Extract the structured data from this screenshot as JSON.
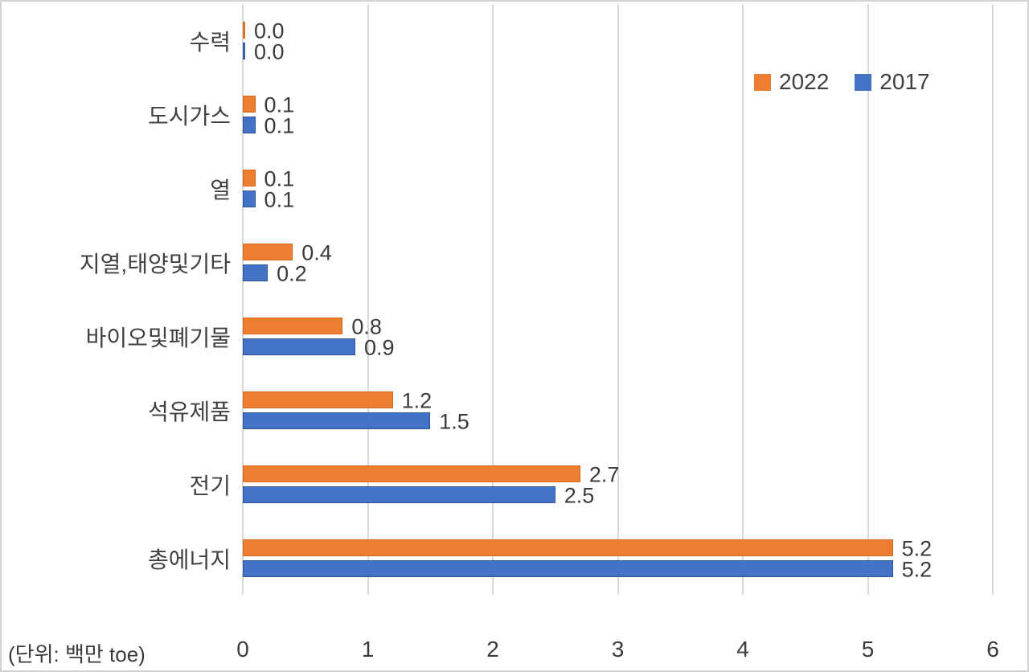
{
  "frame": {
    "background": "#FFFFFF",
    "border_color": "#D2D2D2"
  },
  "unit_note": "(단위: 백만 toe)",
  "legend": {
    "position": "top-right",
    "items": [
      {
        "label": "2022",
        "color": "#ED7D31"
      },
      {
        "label": "2017",
        "color": "#4472C4"
      }
    ]
  },
  "chart_data": {
    "type": "bar",
    "orientation": "horizontal",
    "title": "",
    "xlabel": "",
    "ylabel": "",
    "categories": [
      "수력",
      "도시가스",
      "열",
      "지열,태양및기타",
      "바이오및폐기물",
      "석유제품",
      "전기",
      "총에너지"
    ],
    "series": [
      {
        "name": "2022",
        "color": "#ED7D31",
        "border_color": "#D06A22",
        "values": [
          0.0,
          0.1,
          0.1,
          0.4,
          0.8,
          1.2,
          2.7,
          5.2
        ],
        "labels": [
          "0.0",
          "0.1",
          "0.1",
          "0.4",
          "0.8",
          "1.2",
          "2.7",
          "5.2"
        ]
      },
      {
        "name": "2017",
        "color": "#4472C4",
        "border_color": "#2F5597",
        "values": [
          0.0,
          0.1,
          0.1,
          0.2,
          0.9,
          1.5,
          2.5,
          5.2
        ],
        "labels": [
          "0.0",
          "0.1",
          "0.1",
          "0.2",
          "0.9",
          "1.5",
          "2.5",
          "5.2"
        ]
      }
    ],
    "xlim": [
      0,
      6
    ],
    "x_ticks": [
      "0",
      "1",
      "2",
      "3",
      "4",
      "5",
      "6"
    ],
    "grid": true,
    "gridline_color": "#D9D9D9",
    "text_color": "#404040",
    "legend_position": "top-right"
  }
}
